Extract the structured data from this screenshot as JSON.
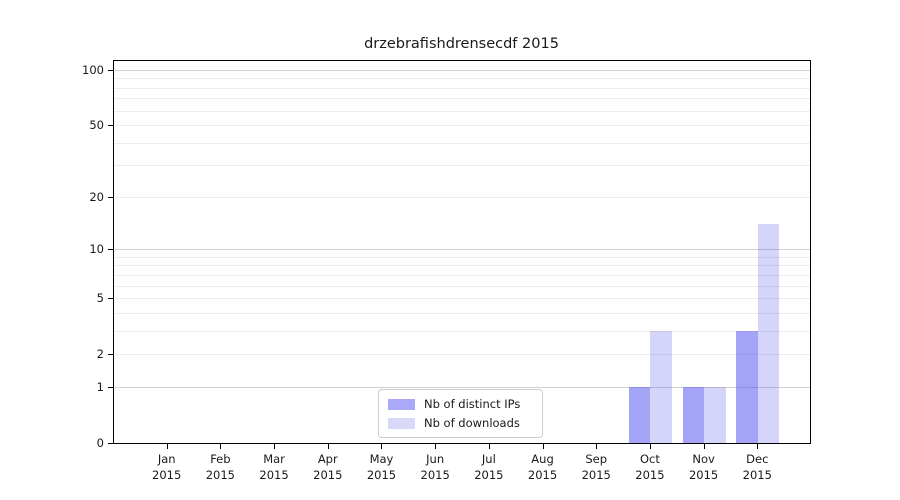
{
  "page": {
    "background": "#ffffff"
  },
  "chart_data": {
    "type": "bar",
    "title": "drzebrafishdrensecdf 2015",
    "categories": [
      "Jan 2015",
      "Feb 2015",
      "Mar 2015",
      "Apr 2015",
      "May 2015",
      "Jun 2015",
      "Jul 2015",
      "Aug 2015",
      "Sep 2015",
      "Oct 2015",
      "Nov 2015",
      "Dec 2015"
    ],
    "series": [
      {
        "name": "Nb of distinct IPs",
        "color_hex": "#a9a9f7",
        "fill": "rgba(80,80,240,0.52)",
        "values": [
          0,
          0,
          0,
          0,
          0,
          0,
          0,
          0,
          0,
          1,
          1,
          3
        ]
      },
      {
        "name": "Nb of downloads",
        "color_hex": "#d9d9f7",
        "fill": "rgba(80,80,240,0.24)",
        "values": [
          0,
          0,
          0,
          0,
          0,
          0,
          0,
          0,
          0,
          3,
          1,
          14
        ]
      }
    ],
    "xlabel": "",
    "ylabel": "",
    "y_axis": {
      "scale": "log1p",
      "tick_values": [
        0,
        1,
        2,
        5,
        10,
        20,
        50,
        100
      ],
      "tick_labels": [
        "0",
        "1",
        "2",
        "5",
        "10",
        "20",
        "50",
        "100"
      ],
      "max": 100,
      "major_gridlines": [
        1,
        10,
        100
      ],
      "minor_gridlines": [
        2,
        3,
        4,
        5,
        6,
        7,
        8,
        9,
        20,
        30,
        40,
        50,
        60,
        70,
        80,
        90
      ]
    },
    "legend": {
      "position": "lower center",
      "entries": [
        "Nb of distinct IPs",
        "Nb of downloads"
      ]
    },
    "grid": "on",
    "colors": {
      "spine": "#000000",
      "major_grid": "#d2d2d2",
      "minor_grid": "#ededed",
      "text": "#1a1a1a",
      "legend_border": "#cccccc"
    }
  }
}
